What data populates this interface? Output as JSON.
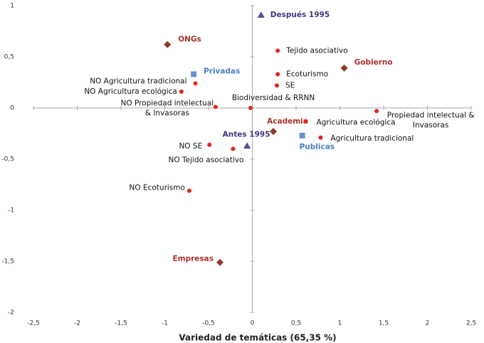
{
  "chart_data": {
    "type": "scatter",
    "x_label": "Variedad de temáticas (65,35 %)",
    "xlim": [
      -2.5,
      2.5
    ],
    "ylim": [
      -2,
      1
    ],
    "xticks": [
      {
        "value": -2.5,
        "label": "-2,5"
      },
      -2,
      {
        "value": -1.5,
        "label": "-1,5"
      },
      -1,
      {
        "value": -0.5,
        "label": "-0,5"
      },
      0,
      {
        "value": 0.5,
        "label": "0,5"
      },
      1,
      {
        "value": 1.5,
        "label": "1,5"
      },
      2,
      {
        "value": 2.5,
        "label": "2,5"
      }
    ],
    "yticks": [
      1,
      {
        "value": 0.5,
        "label": "0,5"
      },
      0,
      {
        "value": -0.5,
        "label": "-0,5"
      },
      -1,
      {
        "value": -1.5,
        "label": "-1,5"
      },
      -2
    ],
    "series": [
      {
        "marker": "diamond",
        "color": "#8b3a2a",
        "label_color": "#a8302a",
        "label_bold": true,
        "labels": [
          "ONGs",
          "Gobierno",
          "Academia",
          "Empresas"
        ],
        "x": [
          -0.97,
          1.05,
          0.24,
          -0.37
        ],
        "y": [
          0.62,
          0.39,
          -0.23,
          -1.51
        ]
      },
      {
        "marker": "square",
        "color": "#6a8fd0",
        "label_color": "#4a7fc1",
        "label_bold": true,
        "labels": [
          "Privadas",
          "Publicas"
        ],
        "x": [
          -0.67,
          0.57
        ],
        "y": [
          0.33,
          -0.27
        ]
      },
      {
        "marker": "triangle",
        "color": "#5b4a9a",
        "label_color": "#3d3580",
        "label_bold": true,
        "labels": [
          "Después 1995",
          "Antes 1995"
        ],
        "x": [
          0.1,
          -0.06
        ],
        "y": [
          0.91,
          -0.37
        ]
      },
      {
        "marker": "circle",
        "color": "#e0251c",
        "label_color": "#111111",
        "label_bold": false,
        "labels": [
          "Tejido asociativo",
          "Ecoturismo",
          "SE",
          "Biodiversidad & RRNN",
          "NO Agricultura tradicional",
          "NO Agricultura ecológica",
          [
            "NO Propiedad intelectual",
            "& Invasoras"
          ],
          [
            "Propiedad intelectual &",
            "Invasoras"
          ],
          "Agricultura ecológica",
          "Agricultura tradicional",
          "NO SE",
          "NO Tejido asociativo",
          "NO Ecoturismo"
        ],
        "x": [
          0.29,
          0.29,
          0.28,
          -0.02,
          -0.65,
          -0.81,
          -0.42,
          1.42,
          0.61,
          0.78,
          -0.49,
          -0.22,
          -0.72
        ],
        "y": [
          0.56,
          0.33,
          0.22,
          0.0,
          0.24,
          0.16,
          0.01,
          -0.03,
          -0.13,
          -0.29,
          -0.36,
          -0.4,
          -0.81
        ]
      }
    ]
  }
}
